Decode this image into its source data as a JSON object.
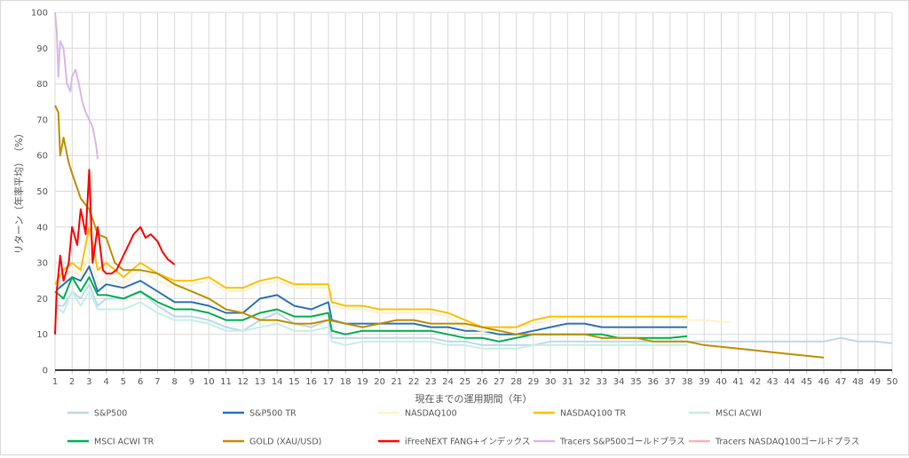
{
  "chart_data": {
    "type": "line",
    "title": "",
    "xlabel": "現在までの運用期間（年）",
    "ylabel": "リターン（年率平均）　（%）",
    "xlim": [
      1,
      50
    ],
    "ylim": [
      0,
      100
    ],
    "x_ticks": [
      "1",
      "2",
      "3",
      "4",
      "5",
      "6",
      "7",
      "8",
      "9",
      "10",
      "11",
      "12",
      "13",
      "14",
      "15",
      "16",
      "17",
      "18",
      "19",
      "20",
      "21",
      "22",
      "23",
      "24",
      "25",
      "26",
      "27",
      "28",
      "29",
      "30",
      "31",
      "32",
      "33",
      "34",
      "35",
      "36",
      "37",
      "38",
      "39",
      "40",
      "41",
      "42",
      "43",
      "44",
      "45",
      "46",
      "47",
      "48",
      "49",
      "50"
    ],
    "y_ticks": [
      "0",
      "10",
      "20",
      "30",
      "40",
      "50",
      "60",
      "70",
      "80",
      "90",
      "100"
    ],
    "grid": true,
    "legend_position": "bottom",
    "series": [
      {
        "name": "S&P500",
        "color": "#bdd7ee",
        "x": [
          1,
          1.5,
          2,
          2.5,
          3,
          3.5,
          4,
          5,
          6,
          7,
          8,
          9,
          10,
          11,
          12,
          13,
          14,
          15,
          16,
          17,
          17.2,
          18,
          19,
          20,
          21,
          22,
          23,
          24,
          25,
          26,
          27,
          28,
          29,
          30,
          31,
          32,
          33,
          34,
          35,
          36,
          37,
          38,
          39,
          40,
          41,
          42,
          43,
          44,
          45,
          46,
          47,
          48,
          49,
          50
        ],
        "values": [
          18,
          18,
          22,
          20,
          24,
          18,
          20,
          20,
          22,
          18,
          15,
          15,
          14,
          12,
          11,
          14,
          16,
          13,
          12,
          14,
          9,
          9,
          9,
          9,
          9,
          9,
          9,
          8,
          8,
          7,
          7,
          7,
          7,
          8,
          8,
          8,
          8,
          8,
          8,
          8,
          8,
          8,
          8,
          8,
          8,
          8,
          8,
          8,
          8,
          8,
          9,
          8,
          8,
          7.5
        ]
      },
      {
        "name": "S&P500 TR",
        "color": "#2e75b6",
        "x": [
          1,
          1.5,
          2,
          2.5,
          3,
          3.5,
          4,
          5,
          6,
          7,
          8,
          9,
          10,
          11,
          12,
          13,
          14,
          15,
          16,
          17,
          17.2,
          18,
          19,
          20,
          21,
          22,
          23,
          24,
          25,
          26,
          27,
          28,
          29,
          30,
          31,
          32,
          33,
          34,
          35,
          36,
          37,
          38
        ],
        "values": [
          22,
          24,
          26,
          25,
          29,
          22,
          24,
          23,
          25,
          22,
          19,
          19,
          18,
          16,
          16,
          20,
          21,
          18,
          17,
          19,
          14,
          13,
          13,
          13,
          13,
          13,
          12,
          12,
          11,
          11,
          10,
          10,
          11,
          12,
          13,
          13,
          12,
          12,
          12,
          12,
          12,
          12
        ]
      },
      {
        "name": "NASDAQ100",
        "color": "#fff2cc",
        "x": [
          1,
          1.5,
          2,
          2.5,
          3,
          3.5,
          4,
          5,
          6,
          7,
          8,
          9,
          10,
          11,
          12,
          13,
          14,
          15,
          16,
          17,
          17.2,
          18,
          19,
          20,
          21,
          22,
          23,
          24,
          25,
          26,
          27,
          28,
          29,
          30,
          31,
          32,
          33,
          34,
          35,
          36,
          37,
          38,
          39,
          40,
          40.5
        ],
        "values": [
          22,
          26,
          28,
          26,
          32,
          24,
          26,
          24,
          28,
          25,
          23,
          24,
          25,
          22,
          22,
          24,
          25,
          23,
          23,
          23,
          18,
          17,
          17,
          16,
          16,
          16,
          16,
          15,
          12,
          11,
          11,
          12,
          13,
          14,
          15,
          15,
          15,
          15,
          15,
          15,
          15,
          14,
          14,
          13.5,
          13.5
        ]
      },
      {
        "name": "NASDAQ100 TR",
        "color": "#ffc000",
        "x": [
          1,
          1.5,
          2,
          2.5,
          3,
          3.5,
          4,
          5,
          6,
          7,
          8,
          9,
          10,
          11,
          12,
          13,
          14,
          15,
          16,
          17,
          17.2,
          18,
          19,
          20,
          21,
          22,
          23,
          24,
          25,
          26,
          27,
          28,
          29,
          30,
          31,
          32,
          33,
          34,
          35,
          36,
          37,
          38
        ],
        "values": [
          24,
          28,
          30,
          28,
          40,
          28,
          30,
          26,
          30,
          27,
          25,
          25,
          26,
          23,
          23,
          25,
          26,
          24,
          24,
          24,
          19,
          18,
          18,
          17,
          17,
          17,
          17,
          16,
          14,
          12,
          12,
          12,
          14,
          15,
          15,
          15,
          15,
          15,
          15,
          15,
          15,
          15
        ]
      },
      {
        "name": "MSCI ACWI",
        "color": "#c6efe3",
        "x": [
          1,
          1.5,
          2,
          2.5,
          3,
          3.5,
          4,
          5,
          6,
          7,
          8,
          9,
          10,
          11,
          12,
          13,
          14,
          15,
          16,
          17,
          17.2,
          18,
          19,
          20,
          21,
          22,
          23,
          24,
          25,
          26,
          27,
          28,
          29,
          30,
          31,
          32,
          33,
          34,
          35,
          36,
          37,
          38
        ],
        "values": [
          18,
          16,
          22,
          18,
          22,
          17,
          17,
          17,
          19,
          16,
          14,
          14,
          13,
          11,
          11,
          12,
          13,
          11,
          11,
          12,
          8,
          7,
          8,
          8,
          8,
          8,
          8,
          7,
          7,
          6,
          6,
          6,
          7,
          7,
          7,
          7,
          7,
          7,
          7,
          7,
          7,
          7
        ]
      },
      {
        "name": "MSCI ACWI TR",
        "color": "#00b050",
        "x": [
          1,
          1.5,
          2,
          2.5,
          3,
          3.5,
          4,
          5,
          6,
          7,
          8,
          9,
          10,
          11,
          12,
          13,
          14,
          15,
          16,
          17,
          17.2,
          18,
          19,
          20,
          21,
          22,
          23,
          24,
          25,
          26,
          27,
          28,
          29,
          30,
          31,
          32,
          33,
          34,
          35,
          36,
          37,
          38
        ],
        "values": [
          22,
          20,
          26,
          22,
          26,
          21,
          21,
          20,
          22,
          19,
          17,
          17,
          16,
          14,
          14,
          16,
          17,
          15,
          15,
          16,
          11,
          10,
          11,
          11,
          11,
          11,
          11,
          10,
          9,
          9,
          8,
          9,
          10,
          10,
          10,
          10,
          10,
          9,
          9,
          9,
          9,
          9.5
        ]
      },
      {
        "name": "GOLD (XAU/USD)",
        "color": "#bf9000",
        "x": [
          1,
          1.2,
          1.3,
          1.5,
          1.8,
          2,
          2.5,
          3,
          3.5,
          4,
          4.5,
          5,
          6,
          7,
          8,
          9,
          10,
          11,
          12,
          13,
          14,
          15,
          16,
          17,
          18,
          19,
          20,
          21,
          22,
          23,
          24,
          25,
          26,
          27,
          28,
          29,
          30,
          31,
          32,
          33,
          34,
          35,
          36,
          37,
          38,
          39,
          40,
          41,
          42,
          43,
          44,
          45,
          46
        ],
        "values": [
          74,
          72,
          60,
          65,
          58,
          55,
          48,
          45,
          38,
          37,
          30,
          28,
          28,
          27,
          24,
          22,
          20,
          17,
          16,
          14,
          14,
          13,
          13,
          14,
          13,
          12,
          13,
          14,
          14,
          13,
          13,
          13,
          12,
          11,
          10,
          10,
          10,
          10,
          10,
          9,
          9,
          9,
          8,
          8,
          8,
          7,
          6.5,
          6,
          5.5,
          5,
          4.5,
          4,
          3.5
        ]
      },
      {
        "name": "iFreeNEXT FANG+インデックス",
        "color": "#ff0000",
        "x": [
          1,
          1.1,
          1.3,
          1.5,
          1.8,
          2,
          2.3,
          2.5,
          2.8,
          3,
          3.2,
          3.5,
          3.8,
          4,
          4.3,
          4.6,
          5,
          5.3,
          5.6,
          6,
          6.3,
          6.6,
          7,
          7.3,
          7.6,
          8
        ],
        "values": [
          10,
          22,
          32,
          25,
          30,
          40,
          35,
          45,
          38,
          56,
          30,
          40,
          28,
          27,
          27,
          28,
          32,
          35,
          38,
          40,
          37,
          38,
          36,
          33,
          31,
          29.5
        ]
      },
      {
        "name": "Tracers S&P500ゴールドプラス",
        "color": "#d9b8e8",
        "x": [
          1,
          1.1,
          1.2,
          1.3,
          1.5,
          1.7,
          1.9,
          2,
          2.2,
          2.4,
          2.6,
          2.8,
          3,
          3.2,
          3.4,
          3.5
        ],
        "values": [
          100,
          95,
          82,
          92,
          90,
          80,
          78,
          82,
          84,
          80,
          75,
          72,
          70,
          68,
          63,
          59
        ]
      },
      {
        "name": "Tracers NASDAQ100ゴールドプラス",
        "color": "#f4b6b6",
        "x": [],
        "values": []
      }
    ]
  }
}
